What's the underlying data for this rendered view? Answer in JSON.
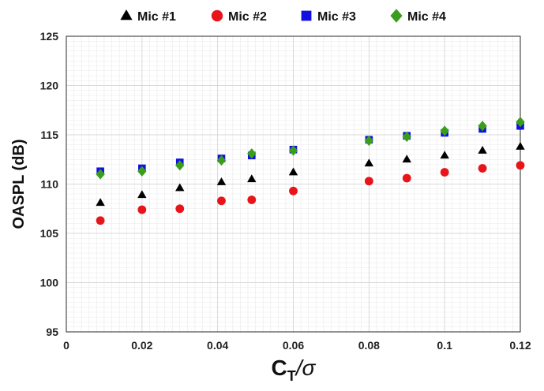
{
  "chart_data": {
    "type": "scatter",
    "title": "",
    "xlabel": {
      "main": "C",
      "sub": "T",
      "rest": "/σ"
    },
    "ylabel": "OASPL (dB)",
    "xlim": [
      0,
      0.12
    ],
    "ylim": [
      95,
      125
    ],
    "xticks": [
      "0",
      "0.02",
      "0.04",
      "0.06",
      "0.08",
      "0.1",
      "0.12"
    ],
    "yticks": [
      "95",
      "100",
      "105",
      "110",
      "115",
      "120",
      "125"
    ],
    "grid": true,
    "minor_grid": true,
    "legend_position": "top",
    "series": [
      {
        "name": "Mic #1",
        "marker": "triangle",
        "color": "#000000",
        "x": [
          0.009,
          0.02,
          0.03,
          0.041,
          0.049,
          0.06,
          0.08,
          0.09,
          0.1,
          0.11,
          0.12
        ],
        "y": [
          108.1,
          108.9,
          109.6,
          110.2,
          110.5,
          111.2,
          112.1,
          112.5,
          112.9,
          113.4,
          113.8
        ]
      },
      {
        "name": "Mic #2",
        "marker": "circle",
        "color": "#e8141a",
        "x": [
          0.009,
          0.02,
          0.03,
          0.041,
          0.049,
          0.06,
          0.08,
          0.09,
          0.1,
          0.11,
          0.12
        ],
        "y": [
          106.3,
          107.4,
          107.5,
          108.3,
          108.4,
          109.3,
          110.3,
          110.6,
          111.2,
          111.6,
          111.9
        ]
      },
      {
        "name": "Mic #3",
        "marker": "square",
        "color": "#1010e0",
        "x": [
          0.009,
          0.02,
          0.03,
          0.041,
          0.049,
          0.06,
          0.08,
          0.09,
          0.1,
          0.11,
          0.12
        ],
        "y": [
          111.3,
          111.6,
          112.2,
          112.6,
          112.9,
          113.5,
          114.5,
          114.9,
          115.2,
          115.6,
          115.9
        ]
      },
      {
        "name": "Mic #4",
        "marker": "diamond",
        "color": "#3a9e1c",
        "x": [
          0.009,
          0.02,
          0.03,
          0.041,
          0.049,
          0.06,
          0.08,
          0.09,
          0.1,
          0.11,
          0.12
        ],
        "y": [
          111.0,
          111.3,
          111.9,
          112.4,
          113.1,
          113.4,
          114.4,
          114.8,
          115.4,
          115.9,
          116.3
        ]
      }
    ]
  }
}
